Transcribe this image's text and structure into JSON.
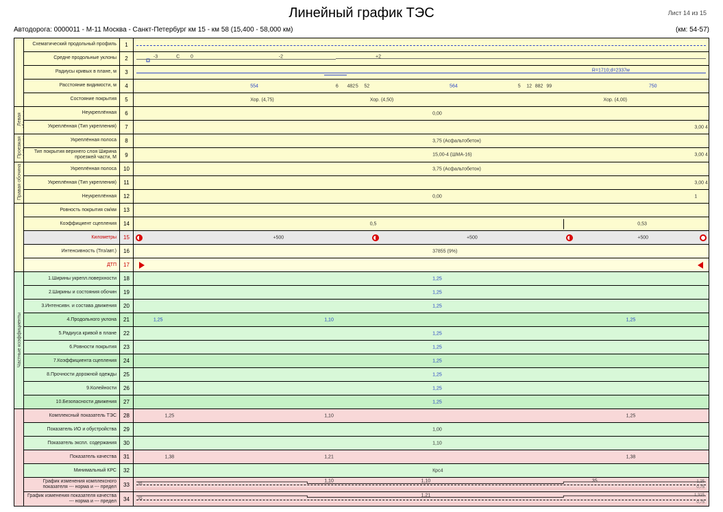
{
  "colors": {
    "bg_yellow": "#fdfccf",
    "bg_gray": "#e8e8e8",
    "bg_yellowlt": "#fffedd",
    "bg_green": "#d8f8d8",
    "bg_green2": "#c6f2c6",
    "bg_pink": "#f8d8d8",
    "blue": "#2742c4",
    "red": "#c80000",
    "grid": "#000000"
  },
  "layout": {
    "data_col_fractions": [
      0.088,
      0.253,
      0.478,
      0.181
    ]
  },
  "header": {
    "title": "Линейный график ТЭС",
    "sheet": "Лист 14 из 15",
    "road": "Автодорога: 0000011 - М-11 Москва - Санкт-Петербург км 15 - км 58 (15,400 - 58,000 км)",
    "km_range": "(км: 54-57)"
  },
  "side_labels": {
    "s1": "Левая обочина",
    "s2": "Проезжая часть и км",
    "s3": "Правая обочина",
    "s4": "Частные коэффициенты"
  },
  "rows": {
    "r1": {
      "n": "1",
      "label": "Схематический продольный профиль"
    },
    "r2": {
      "n": "2",
      "label": "Средне продольные уклоны"
    },
    "r3": {
      "n": "3",
      "label": "Радиусы кривых в плане, м"
    },
    "r4": {
      "n": "4",
      "label": "Расстояние видимости, м"
    },
    "r5": {
      "n": "5",
      "label": "Состояние покрытия"
    },
    "r6": {
      "n": "6",
      "label": "Неукреплённая"
    },
    "r7": {
      "n": "7",
      "label": "Укреплённая (Тип укрепления)"
    },
    "r8": {
      "n": "8",
      "label": "Укреплённая полоса"
    },
    "r9": {
      "n": "9",
      "label": "Тип покрытия верхнего слоя Ширина проезжей части, М"
    },
    "r10": {
      "n": "10",
      "label": "Укреплённая полоса"
    },
    "r11": {
      "n": "11",
      "label": "Укреплённая (Тип укрепления)"
    },
    "r12": {
      "n": "12",
      "label": "Неукреплённая"
    },
    "r13": {
      "n": "13",
      "label": "Ровность покрытия  см/км"
    },
    "r14": {
      "n": "14",
      "label": "Коэффициент сцепления"
    },
    "r15": {
      "n": "15",
      "label": "Километры"
    },
    "r16": {
      "n": "16",
      "label": "Интенсивность (Тпз/авт.)"
    },
    "r17": {
      "n": "17",
      "label": "ДТП"
    },
    "r18": {
      "n": "18",
      "label": "1.Ширины укрепл.поверхности"
    },
    "r19": {
      "n": "19",
      "label": "2.Ширины и состояния обочин"
    },
    "r20": {
      "n": "20",
      "label": "3.Интенсивн. и состава движения"
    },
    "r21": {
      "n": "21",
      "label": "4.Продольного уклона"
    },
    "r22": {
      "n": "22",
      "label": "5.Радиуса кривой в плане"
    },
    "r23": {
      "n": "23",
      "label": "6.Ровности покрытия"
    },
    "r24": {
      "n": "24",
      "label": "7.Коэффициента сцепления"
    },
    "r25": {
      "n": "25",
      "label": "8.Прочности дорожной одежды"
    },
    "r26": {
      "n": "26",
      "label": "9.Колейности"
    },
    "r27": {
      "n": "27",
      "label": "10.Безопасности движения"
    },
    "r28": {
      "n": "28",
      "label": "Комплексный показатель ТЭС"
    },
    "r29": {
      "n": "29",
      "label": "Показатель ИО и обустройства"
    },
    "r30": {
      "n": "30",
      "label": "Показатель экспл. содержания"
    },
    "r31": {
      "n": "31",
      "label": "Показатель качества"
    },
    "r32": {
      "n": "32",
      "label": "Минимальный КРС"
    },
    "r33": {
      "n": "33",
      "label": "График изменения комплексного показателя --- норма и --- предел"
    },
    "r34": {
      "n": "34",
      "label": "График изменения показателя качества --- норма и --- предел"
    }
  },
  "data": {
    "r2_vals": [
      {
        "x": 3,
        "v": "-3"
      },
      {
        "x": 7,
        "v": "C"
      },
      {
        "x": 9.5,
        "v": "0"
      },
      {
        "x": 25,
        "v": "-2"
      },
      {
        "x": 42,
        "v": "+2"
      }
    ],
    "r3_text": {
      "x": 80,
      "v": "R=1710;d=2337м"
    },
    "r4_vals": [
      {
        "x": 20,
        "v": "554",
        "blue": true
      },
      {
        "x": 35,
        "v": "6"
      },
      {
        "x": 37,
        "v": "482"
      },
      {
        "x": 38.5,
        "v": "5"
      },
      {
        "x": 40,
        "v": "52"
      },
      {
        "x": 55,
        "v": "564",
        "blue": true
      },
      {
        "x": 67,
        "v": "5"
      },
      {
        "x": 68.5,
        "v": "12"
      },
      {
        "x": 70,
        "v": "882"
      },
      {
        "x": 72,
        "v": "99"
      },
      {
        "x": 90,
        "v": "750",
        "blue": true
      }
    ],
    "r5_vals": [
      {
        "x": 20,
        "v": "Хор. (4,75)"
      },
      {
        "x": 41,
        "v": "Хор. (4,50)"
      },
      {
        "x": 82,
        "v": "Хор. (4,00)"
      }
    ],
    "r6_val": {
      "x": 52,
      "v": "0,00"
    },
    "r7_right": "3,00 4",
    "r8_val": {
      "x": 52,
      "v": "3,75 (Асфальтобетон)"
    },
    "r9_val": {
      "x": 52,
      "v": "15,00-4 (ШМА-16)"
    },
    "r9_right": "3,00 4",
    "r10_val": {
      "x": 52,
      "v": "3,75 (Асфальтобетон)"
    },
    "r11_right": "3,00 4",
    "r12_val": {
      "x": 52,
      "v": "0,00"
    },
    "r12_right": "1",
    "r14_vals": [
      {
        "x": 41,
        "v": "0,5"
      },
      {
        "x": 88,
        "v": "0,53"
      }
    ],
    "r14_tick": 75,
    "r15_labels": [
      {
        "x": 24,
        "v": "+500"
      },
      {
        "x": 58,
        "v": "+500"
      },
      {
        "x": 88,
        "v": "+500"
      }
    ],
    "r15_dots": [
      {
        "x": 0.5,
        "half": true
      },
      {
        "x": 42,
        "half": true
      },
      {
        "x": 76,
        "half": true
      },
      {
        "x": 99.5,
        "half": false
      }
    ],
    "r16_val": {
      "x": 52,
      "v": "37855 (9%)"
    },
    "r17_tris": [
      {
        "x": 1,
        "dir": "right"
      },
      {
        "x": 99,
        "dir": "left"
      }
    ],
    "coef_center": "1,25",
    "r18_val": {
      "x": 52,
      "v": "1,25"
    },
    "r19_val": {
      "x": 52,
      "v": "1,25"
    },
    "r20_val": {
      "x": 52,
      "v": "1,25"
    },
    "r21_vals": [
      {
        "x": 3,
        "v": "1,25"
      },
      {
        "x": 33,
        "v": "1,10"
      },
      {
        "x": 86,
        "v": "1,25"
      }
    ],
    "r22_val": {
      "x": 52,
      "v": "1,25"
    },
    "r23_val": {
      "x": 52,
      "v": "1,25"
    },
    "r24_val": {
      "x": 52,
      "v": "1,25"
    },
    "r25_val": {
      "x": 52,
      "v": "1,25"
    },
    "r26_val": {
      "x": 52,
      "v": "1,25"
    },
    "r27_val": {
      "x": 52,
      "v": "1,25"
    },
    "r28_vals": [
      {
        "x": 5,
        "v": "1,25"
      },
      {
        "x": 33,
        "v": "1,10"
      },
      {
        "x": 86,
        "v": "1,25"
      }
    ],
    "r29_val": {
      "x": 52,
      "v": "1,00"
    },
    "r30_val": {
      "x": 52,
      "v": "1,10"
    },
    "r31_vals": [
      {
        "x": 5,
        "v": "1,38"
      },
      {
        "x": 33,
        "v": "1,21"
      },
      {
        "x": 86,
        "v": "1,38"
      }
    ],
    "r32_val": {
      "x": 52,
      "v": "Крс4"
    },
    "chart33": {
      "ylim": [
        0.5,
        1.5
      ],
      "norm": 1.0,
      "limit": 0.75,
      "series": [
        {
          "x": 0,
          "y": 1.25
        },
        {
          "x": 30,
          "y": 1.1
        },
        {
          "x": 50,
          "y": 1.1
        },
        {
          "x": 75,
          "y": 1.25
        },
        {
          "x": 100,
          "y": 1.25
        }
      ],
      "labels": [
        {
          "x": 33,
          "v": "1,10"
        },
        {
          "x": 50,
          "v": "1,10"
        },
        {
          "x": 80,
          "v": "35"
        }
      ],
      "axis_left": "35",
      "axis_right_hi": "1,25",
      "axis_right_lo": "0,75"
    },
    "chart34": {
      "ylim": [
        0.5,
        1.6
      ],
      "norm": 1.0,
      "limit": 0.75,
      "series": [
        {
          "x": 0,
          "y": 1.38
        },
        {
          "x": 30,
          "y": 1.21
        },
        {
          "x": 50,
          "y": 1.21
        },
        {
          "x": 75,
          "y": 1.38
        },
        {
          "x": 100,
          "y": 1.38
        }
      ],
      "labels": [
        {
          "x": 50,
          "v": "1,21"
        }
      ],
      "axis_left": "35",
      "axis_right_hi": "1,315",
      "axis_right_lo": "0,75"
    }
  }
}
